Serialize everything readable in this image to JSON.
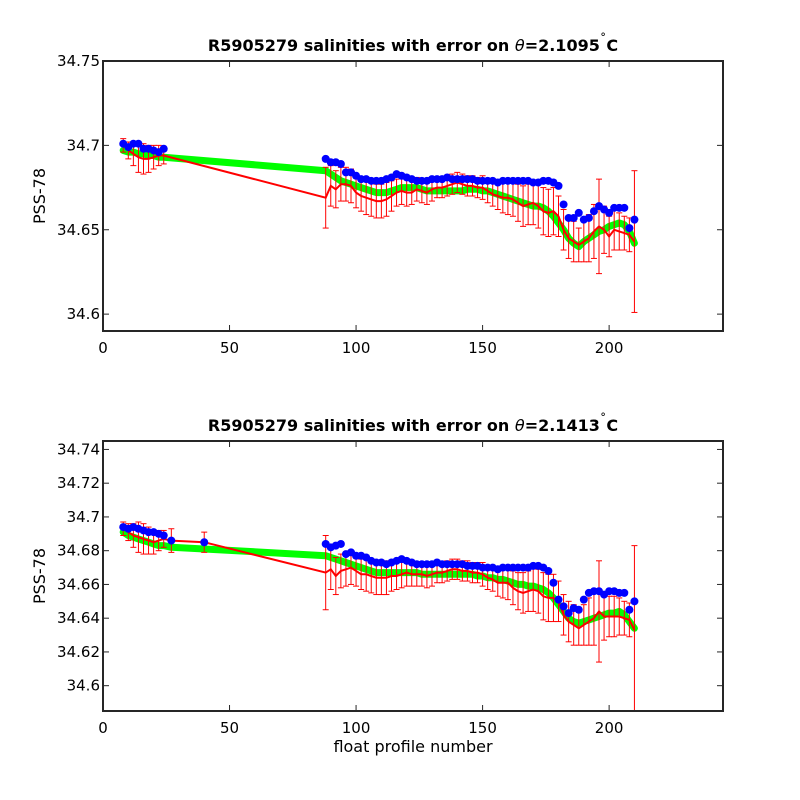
{
  "colors": {
    "background": "#ffffff",
    "float_points": "#0000ff",
    "adjusted_line": "#ff0000",
    "mapped_band": "#00ff00"
  },
  "chart_data": [
    {
      "type": "line",
      "title": "R5905279 salinities with error on θ=2.1095˚C",
      "title_parts": {
        "pre": "R5905279 salinities with error on ",
        "sym": "θ",
        "post": "=2.1095",
        "deg": "˚",
        "unit": "C"
      },
      "xlabel": "",
      "ylabel": "PSS-78",
      "xlim": [
        0,
        245
      ],
      "ylim": [
        34.59,
        34.75
      ],
      "xticks": [
        0,
        50,
        100,
        150,
        200
      ],
      "yticks": [
        34.6,
        34.65,
        34.7,
        34.75
      ],
      "ytick_labels": [
        "34.6",
        "34.65",
        "34.7",
        "34.75"
      ],
      "grid": false,
      "x": [
        8,
        10,
        12,
        14,
        16,
        18,
        20,
        22,
        24,
        88,
        90,
        92,
        94,
        96,
        98,
        100,
        102,
        104,
        106,
        108,
        110,
        112,
        114,
        116,
        118,
        120,
        122,
        124,
        126,
        128,
        130,
        132,
        134,
        136,
        138,
        140,
        142,
        144,
        146,
        148,
        150,
        152,
        154,
        156,
        158,
        160,
        162,
        164,
        166,
        168,
        170,
        172,
        174,
        176,
        178,
        180,
        182,
        184,
        186,
        188,
        190,
        192,
        194,
        196,
        198,
        200,
        202,
        204,
        206,
        208,
        210
      ],
      "series": [
        {
          "role": "mapped",
          "color": "#00ff00",
          "values": [
            34.697,
            34.696,
            34.696,
            34.695,
            34.695,
            34.694,
            34.694,
            34.693,
            34.693,
            34.685,
            34.683,
            34.681,
            34.679,
            34.678,
            34.677,
            34.676,
            34.675,
            34.674,
            34.673,
            34.672,
            34.672,
            34.672,
            34.673,
            34.674,
            34.675,
            34.675,
            34.675,
            34.675,
            34.674,
            34.673,
            34.673,
            34.673,
            34.673,
            34.673,
            34.673,
            34.673,
            34.673,
            34.674,
            34.674,
            34.674,
            34.673,
            34.673,
            34.672,
            34.671,
            34.67,
            34.669,
            34.668,
            34.667,
            34.666,
            34.665,
            34.664,
            34.664,
            34.663,
            34.661,
            34.658,
            34.654,
            34.65,
            34.645,
            34.642,
            34.64,
            34.643,
            34.645,
            34.647,
            34.649,
            34.65,
            34.652,
            34.653,
            34.654,
            34.653,
            34.649,
            34.642
          ]
        },
        {
          "role": "adjusted",
          "color": "#ff0000",
          "values": [
            34.7,
            34.697,
            34.695,
            34.693,
            34.692,
            34.692,
            34.693,
            34.694,
            34.694,
            34.669,
            34.676,
            34.674,
            34.677,
            34.677,
            34.676,
            34.672,
            34.67,
            34.669,
            34.668,
            34.667,
            34.667,
            34.668,
            34.67,
            34.672,
            34.673,
            34.672,
            34.672,
            34.674,
            34.673,
            34.672,
            34.674,
            34.675,
            34.675,
            34.676,
            34.677,
            34.678,
            34.677,
            34.676,
            34.676,
            34.675,
            34.675,
            34.673,
            34.671,
            34.67,
            34.669,
            34.669,
            34.668,
            34.666,
            34.664,
            34.665,
            34.666,
            34.664,
            34.661,
            34.66,
            34.661,
            34.658,
            34.65,
            34.645,
            34.643,
            34.641,
            34.643,
            34.645,
            34.649,
            34.652,
            34.65,
            34.646,
            34.65,
            34.649,
            34.648,
            34.647,
            34.643
          ]
        },
        {
          "role": "error",
          "color": "#ff0000",
          "values": [
            0.004,
            0.005,
            0.007,
            0.009,
            0.009,
            0.008,
            0.007,
            0.006,
            0.005,
            0.018,
            0.012,
            0.011,
            0.01,
            0.01,
            0.01,
            0.009,
            0.009,
            0.01,
            0.01,
            0.01,
            0.01,
            0.01,
            0.009,
            0.008,
            0.008,
            0.008,
            0.007,
            0.007,
            0.007,
            0.007,
            0.007,
            0.006,
            0.006,
            0.006,
            0.006,
            0.006,
            0.006,
            0.006,
            0.006,
            0.006,
            0.007,
            0.007,
            0.007,
            0.008,
            0.009,
            0.01,
            0.01,
            0.011,
            0.012,
            0.012,
            0.013,
            0.013,
            0.014,
            0.014,
            0.014,
            0.012,
            0.012,
            0.012,
            0.012,
            0.01,
            0.012,
            0.014,
            0.016,
            0.028,
            0.014,
            0.012,
            0.012,
            0.011,
            0.01,
            0.01,
            0.042
          ]
        },
        {
          "role": "float",
          "color": "#0000ff",
          "values": [
            34.701,
            34.699,
            34.701,
            34.701,
            34.698,
            34.698,
            34.697,
            34.696,
            34.698,
            34.692,
            34.69,
            34.69,
            34.689,
            34.684,
            34.684,
            34.682,
            34.68,
            34.68,
            34.679,
            34.679,
            34.679,
            34.68,
            34.681,
            34.683,
            34.682,
            34.681,
            34.68,
            34.679,
            34.679,
            34.679,
            34.68,
            34.68,
            34.68,
            34.681,
            34.68,
            34.68,
            34.68,
            34.68,
            34.68,
            34.679,
            34.679,
            34.679,
            34.679,
            34.678,
            34.679,
            34.679,
            34.679,
            34.679,
            34.679,
            34.679,
            34.678,
            34.678,
            34.679,
            34.679,
            34.678,
            34.676,
            34.665,
            34.657,
            34.657,
            34.66,
            34.656,
            34.657,
            34.661,
            34.664,
            34.662,
            34.66,
            34.663,
            34.663,
            34.663,
            34.651,
            34.656
          ]
        }
      ]
    },
    {
      "type": "line",
      "title": "R5905279 salinities with error on θ=2.1413˚C",
      "title_parts": {
        "pre": "R5905279 salinities with error on ",
        "sym": "θ",
        "post": "=2.1413",
        "deg": "˚",
        "unit": "C"
      },
      "xlabel": "float profile number",
      "ylabel": "PSS-78",
      "xlim": [
        0,
        245
      ],
      "ylim": [
        34.585,
        34.745
      ],
      "xticks": [
        0,
        50,
        100,
        150,
        200
      ],
      "yticks": [
        34.6,
        34.62,
        34.64,
        34.66,
        34.68,
        34.7,
        34.72,
        34.74
      ],
      "ytick_labels": [
        "34.6",
        "34.62",
        "34.64",
        "34.66",
        "34.68",
        "34.7",
        "34.72",
        "34.74"
      ],
      "grid": false,
      "x": [
        8,
        10,
        12,
        14,
        16,
        18,
        20,
        22,
        24,
        27,
        40,
        88,
        90,
        92,
        94,
        96,
        98,
        100,
        102,
        104,
        106,
        108,
        110,
        112,
        114,
        116,
        118,
        120,
        122,
        124,
        126,
        128,
        130,
        132,
        134,
        136,
        138,
        140,
        142,
        144,
        146,
        148,
        150,
        152,
        154,
        156,
        158,
        160,
        162,
        164,
        166,
        168,
        170,
        172,
        174,
        176,
        178,
        180,
        182,
        184,
        186,
        188,
        190,
        192,
        194,
        196,
        198,
        200,
        202,
        204,
        206,
        208,
        210
      ],
      "series": [
        {
          "role": "mapped",
          "color": "#00ff00",
          "values": [
            34.691,
            34.689,
            34.688,
            34.687,
            34.686,
            34.685,
            34.684,
            34.683,
            34.683,
            34.682,
            34.681,
            34.677,
            34.676,
            34.675,
            34.674,
            34.673,
            34.672,
            34.671,
            34.67,
            34.669,
            34.668,
            34.667,
            34.667,
            34.667,
            34.667,
            34.667,
            34.667,
            34.667,
            34.667,
            34.667,
            34.666,
            34.666,
            34.666,
            34.666,
            34.666,
            34.666,
            34.666,
            34.666,
            34.666,
            34.666,
            34.666,
            34.665,
            34.665,
            34.664,
            34.664,
            34.663,
            34.663,
            34.662,
            34.661,
            34.66,
            34.66,
            34.659,
            34.659,
            34.658,
            34.657,
            34.655,
            34.652,
            34.648,
            34.644,
            34.64,
            34.638,
            34.637,
            34.638,
            34.639,
            34.64,
            34.641,
            34.642,
            34.643,
            34.643,
            34.644,
            34.642,
            34.638,
            34.634
          ]
        },
        {
          "role": "adjusted",
          "color": "#ff0000",
          "values": [
            34.693,
            34.691,
            34.689,
            34.688,
            34.687,
            34.686,
            34.685,
            34.686,
            34.687,
            34.686,
            34.685,
            34.667,
            34.669,
            34.665,
            34.668,
            34.669,
            34.67,
            34.668,
            34.666,
            34.666,
            34.665,
            34.664,
            34.664,
            34.664,
            34.665,
            34.665,
            34.666,
            34.667,
            34.666,
            34.666,
            34.666,
            34.665,
            34.666,
            34.667,
            34.667,
            34.668,
            34.669,
            34.669,
            34.668,
            34.668,
            34.667,
            34.667,
            34.666,
            34.664,
            34.663,
            34.661,
            34.661,
            34.661,
            34.658,
            34.656,
            34.655,
            34.656,
            34.657,
            34.656,
            34.653,
            34.652,
            34.652,
            34.65,
            34.642,
            34.638,
            34.636,
            34.634,
            34.636,
            34.638,
            34.64,
            34.644,
            34.641,
            34.641,
            34.641,
            34.641,
            34.64,
            34.639,
            34.633
          ]
        },
        {
          "role": "error",
          "color": "#ff0000",
          "values": [
            0.004,
            0.005,
            0.007,
            0.009,
            0.009,
            0.008,
            0.007,
            0.006,
            0.005,
            0.007,
            0.006,
            0.022,
            0.012,
            0.011,
            0.01,
            0.01,
            0.01,
            0.009,
            0.009,
            0.01,
            0.01,
            0.01,
            0.01,
            0.01,
            0.009,
            0.008,
            0.008,
            0.008,
            0.007,
            0.007,
            0.007,
            0.007,
            0.007,
            0.006,
            0.006,
            0.006,
            0.006,
            0.006,
            0.006,
            0.006,
            0.006,
            0.006,
            0.007,
            0.007,
            0.007,
            0.008,
            0.009,
            0.01,
            0.01,
            0.011,
            0.012,
            0.012,
            0.013,
            0.013,
            0.014,
            0.014,
            0.014,
            0.012,
            0.012,
            0.012,
            0.012,
            0.01,
            0.012,
            0.014,
            0.016,
            0.03,
            0.014,
            0.012,
            0.012,
            0.011,
            0.01,
            0.01,
            0.05
          ]
        },
        {
          "role": "float",
          "color": "#0000ff",
          "values": [
            34.694,
            34.693,
            34.694,
            34.693,
            34.692,
            34.691,
            34.691,
            34.69,
            34.689,
            34.686,
            34.685,
            34.684,
            34.682,
            34.683,
            34.684,
            34.678,
            34.679,
            34.677,
            34.677,
            34.676,
            34.674,
            34.673,
            34.673,
            34.672,
            34.673,
            34.674,
            34.675,
            34.674,
            34.673,
            34.672,
            34.672,
            34.672,
            34.672,
            34.673,
            34.672,
            34.672,
            34.672,
            34.672,
            34.672,
            34.671,
            34.671,
            34.671,
            34.67,
            34.67,
            34.67,
            34.669,
            34.67,
            34.67,
            34.67,
            34.67,
            34.67,
            34.67,
            34.671,
            34.671,
            34.67,
            34.668,
            34.661,
            34.651,
            34.647,
            34.643,
            34.646,
            34.645,
            34.651,
            34.655,
            34.656,
            34.656,
            34.654,
            34.656,
            34.656,
            34.655,
            34.655,
            34.645,
            34.65
          ]
        }
      ]
    }
  ]
}
